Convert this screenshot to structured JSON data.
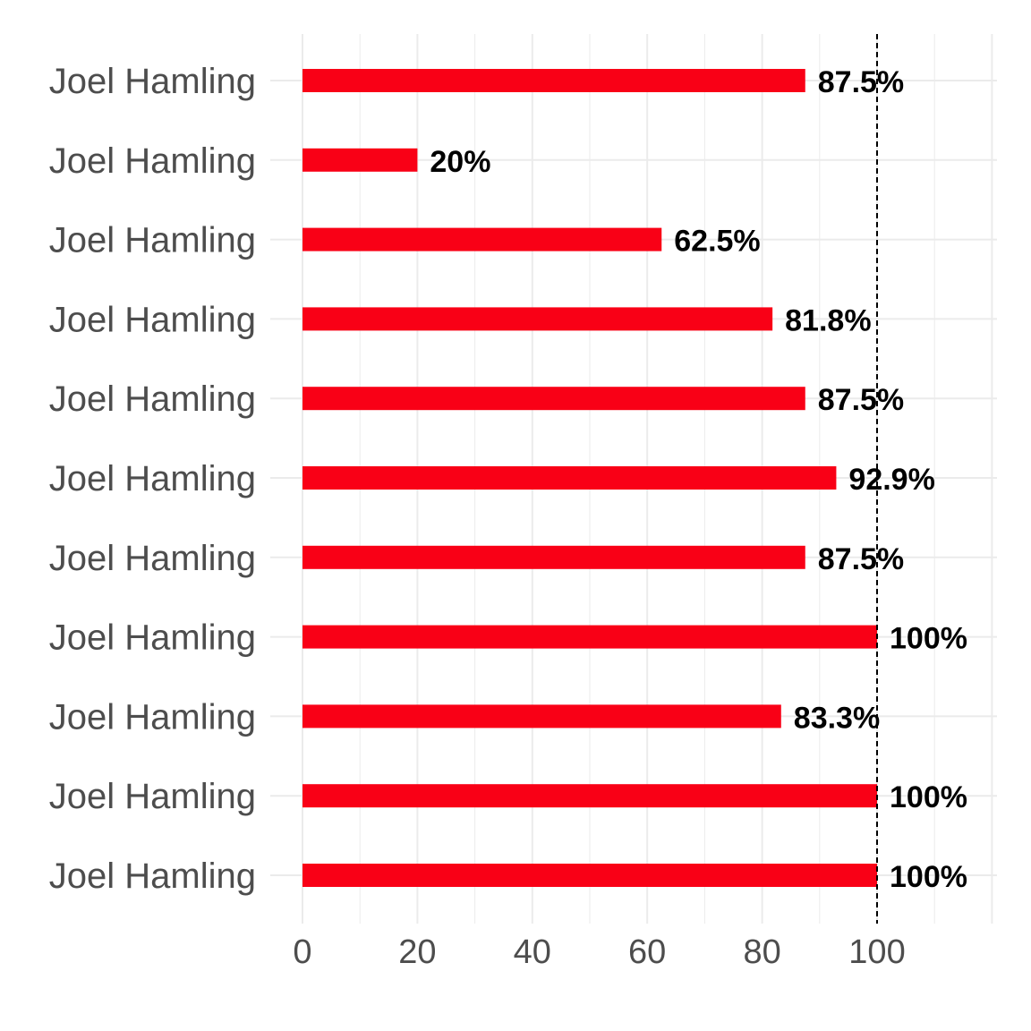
{
  "chart_data": {
    "type": "bar",
    "orientation": "horizontal",
    "categories": [
      "Joel Hamling",
      "Joel Hamling",
      "Joel Hamling",
      "Joel Hamling",
      "Joel Hamling",
      "Joel Hamling",
      "Joel Hamling",
      "Joel Hamling",
      "Joel Hamling",
      "Joel Hamling",
      "Joel Hamling"
    ],
    "values": [
      87.5,
      20,
      62.5,
      81.8,
      87.5,
      92.9,
      87.5,
      100,
      83.3,
      100,
      100
    ],
    "data_labels": [
      "87.5%",
      "20%",
      "62.5%",
      "81.8%",
      "87.5%",
      "92.9%",
      "87.5%",
      "100%",
      "83.3%",
      "100%",
      "100%"
    ],
    "xlim": [
      0,
      120
    ],
    "x_ticks": [
      "0",
      "20",
      "40",
      "60",
      "80",
      "100"
    ],
    "x_tick_values": [
      0,
      20,
      40,
      60,
      80,
      100
    ],
    "reference_line": 100,
    "grid": true,
    "title": "",
    "xlabel": "",
    "ylabel": "",
    "colors": {
      "bar": "#f90016",
      "grid": "#ebebeb",
      "reference_line": "#000000"
    }
  }
}
